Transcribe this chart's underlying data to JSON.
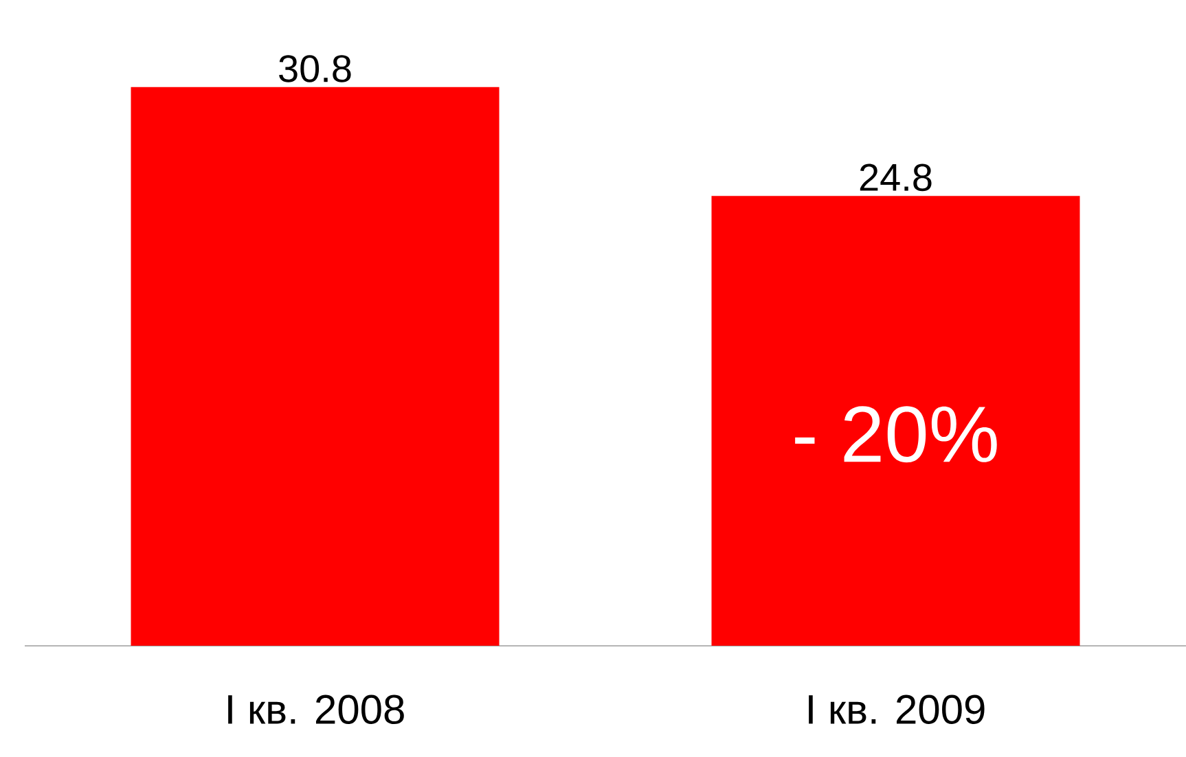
{
  "chart_data": {
    "type": "bar",
    "categories": [
      "I кв. 2008",
      "I кв. 2009"
    ],
    "values": [
      30.8,
      24.8
    ],
    "color": "#ff0000",
    "data_labels": true,
    "annotations": [
      "- 20%"
    ]
  }
}
